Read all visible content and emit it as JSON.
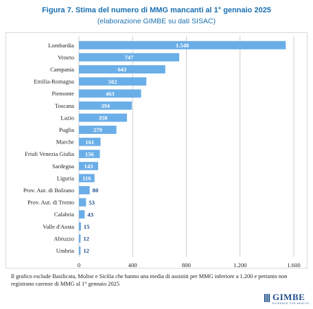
{
  "header": {
    "title": "Figura 7. Stima del numero di MMG mancanti al 1° gennaio 2025",
    "subtitle": "(elaborazione GIMBE su dati SISAC)"
  },
  "footnote": "Il grafico esclude Basilicata, Molise e Sicilia che hanno una media di assistiti per MMG inferiore a 1.200 e pertanto non registrano carenze di MMG al 1° gennaio 2025",
  "logo": {
    "word": "GIMBE",
    "tagline": "EVIDENCE FOR HEALTH"
  },
  "colors": {
    "bar": "#6aaee8",
    "title": "#1a6fb0",
    "grid": "#bfbfbf",
    "outside_label": "#1f4e8c"
  },
  "chart_data": {
    "type": "bar",
    "orientation": "horizontal",
    "categories": [
      "Lombardia",
      "Veneto",
      "Campania",
      "Emilia-Romagna",
      "Piemonte",
      "Toscana",
      "Lazio",
      "Puglia",
      "Marche",
      "Friuli Venezia Giulia",
      "Sardegna",
      "Liguria",
      "Prov. Aut. di Bolzano",
      "Prov. Aut. di Trento",
      "Calabria",
      "Valle d'Aosta",
      "Abruzzo",
      "Umbria"
    ],
    "values": [
      1540,
      747,
      643,
      502,
      463,
      394,
      358,
      279,
      161,
      156,
      143,
      116,
      80,
      53,
      43,
      15,
      12,
      12
    ],
    "value_labels": [
      "1.540",
      "747",
      "643",
      "502",
      "463",
      "394",
      "358",
      "279",
      "161",
      "156",
      "143",
      "116",
      "80",
      "53",
      "43",
      "15",
      "12",
      "12"
    ],
    "xlim": [
      0,
      1600
    ],
    "xticks": [
      0,
      400,
      800,
      1200,
      1600
    ],
    "xtick_labels": [
      "0",
      "400",
      "800",
      "1.200",
      "1.600"
    ],
    "grid": "vertical"
  }
}
